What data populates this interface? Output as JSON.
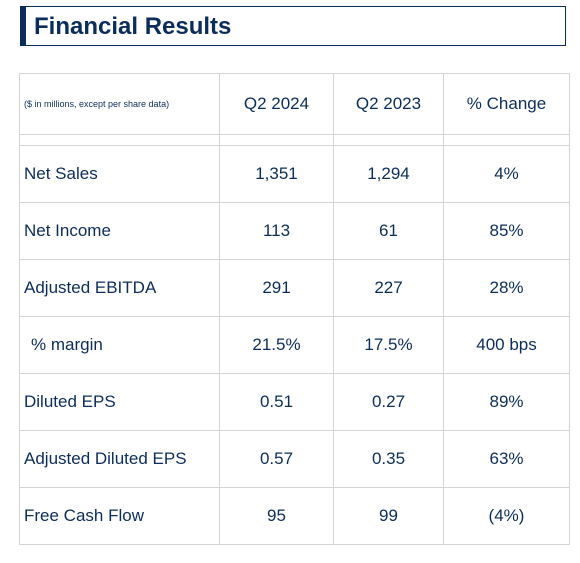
{
  "title": "Financial Results",
  "table": {
    "note": "($ in millions, except per share data)",
    "columns": [
      "Q2 2024",
      "Q2 2023",
      "% Change"
    ],
    "rows": [
      {
        "label": "Net Sales",
        "q2_2024": "1,351",
        "q2_2023": "1,294",
        "change": "4%"
      },
      {
        "label": "Net Income",
        "q2_2024": "113",
        "q2_2023": "61",
        "change": "85%"
      },
      {
        "label": "Adjusted EBITDA",
        "q2_2024": "291",
        "q2_2023": "227",
        "change": "28%"
      },
      {
        "label": "% margin",
        "q2_2024": "21.5%",
        "q2_2023": "17.5%",
        "change": "400 bps"
      },
      {
        "label": "Diluted EPS",
        "q2_2024": "0.51",
        "q2_2023": "0.27",
        "change": "89%"
      },
      {
        "label": "Adjusted Diluted EPS",
        "q2_2024": "0.57",
        "q2_2023": "0.35",
        "change": "63%"
      },
      {
        "label": "Free Cash Flow",
        "q2_2024": "95",
        "q2_2023": "99",
        "change": "(4%)"
      }
    ]
  },
  "colors": {
    "text": "#0b2d5b",
    "border": "#d4d4d4"
  }
}
